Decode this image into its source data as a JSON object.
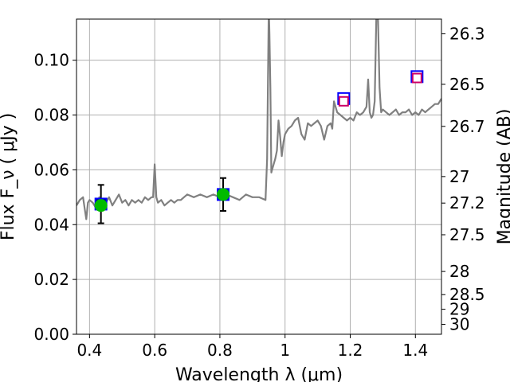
{
  "chart_data": {
    "type": "scatter",
    "xlabel": "Wavelength  λ (μm)",
    "ylabel": "Flux  F_ν  ( μJy )",
    "ylabel_right": "Magnitude (AB)",
    "xlim": [
      0.36,
      1.48
    ],
    "ylim": [
      0.0,
      0.115
    ],
    "grid": true,
    "x_ticks": [
      {
        "value": 0.4,
        "label": "0.4"
      },
      {
        "value": 0.6,
        "label": "0.6"
      },
      {
        "value": 0.8,
        "label": "0.8"
      },
      {
        "value": 1.0,
        "label": "1"
      },
      {
        "value": 1.2,
        "label": "1.2"
      },
      {
        "value": 1.4,
        "label": "1.4"
      }
    ],
    "y_ticks": [
      {
        "value": 0.0,
        "label": "0.00"
      },
      {
        "value": 0.02,
        "label": "0.02"
      },
      {
        "value": 0.04,
        "label": "0.04"
      },
      {
        "value": 0.06,
        "label": "0.06"
      },
      {
        "value": 0.08,
        "label": "0.08"
      },
      {
        "value": 0.1,
        "label": "0.10"
      }
    ],
    "mag_ticks": [
      {
        "mag": 26.3,
        "label": "26.3"
      },
      {
        "mag": 26.5,
        "label": "26.5"
      },
      {
        "mag": 26.7,
        "label": "26.7"
      },
      {
        "mag": 27.0,
        "label": "27"
      },
      {
        "mag": 27.2,
        "label": "27.2"
      },
      {
        "mag": 27.5,
        "label": "27.5"
      },
      {
        "mag": 28.0,
        "label": "28"
      },
      {
        "mag": 28.5,
        "label": "28.5"
      },
      {
        "mag": 29.0,
        "label": "29"
      },
      {
        "mag": 30.0,
        "label": "30"
      }
    ],
    "series": [
      {
        "kind": "line",
        "color": "#808080",
        "x": [
          0.36,
          0.37,
          0.38,
          0.385,
          0.39,
          0.395,
          0.4,
          0.41,
          0.42,
          0.43,
          0.435,
          0.44,
          0.45,
          0.46,
          0.47,
          0.48,
          0.49,
          0.5,
          0.51,
          0.52,
          0.53,
          0.54,
          0.55,
          0.56,
          0.57,
          0.58,
          0.59,
          0.595,
          0.6,
          0.605,
          0.61,
          0.62,
          0.63,
          0.64,
          0.65,
          0.66,
          0.67,
          0.68,
          0.69,
          0.7,
          0.72,
          0.74,
          0.76,
          0.78,
          0.8,
          0.82,
          0.84,
          0.86,
          0.88,
          0.9,
          0.92,
          0.94,
          0.945,
          0.95,
          0.952,
          0.955,
          0.958,
          0.96,
          0.965,
          0.97,
          0.975,
          0.98,
          0.985,
          0.99,
          0.995,
          1.0,
          1.01,
          1.02,
          1.03,
          1.04,
          1.05,
          1.06,
          1.07,
          1.08,
          1.09,
          1.1,
          1.11,
          1.12,
          1.13,
          1.14,
          1.145,
          1.15,
          1.16,
          1.17,
          1.18,
          1.19,
          1.2,
          1.21,
          1.22,
          1.23,
          1.24,
          1.25,
          1.255,
          1.26,
          1.265,
          1.27,
          1.275,
          1.28,
          1.285,
          1.29,
          1.295,
          1.3,
          1.31,
          1.32,
          1.33,
          1.34,
          1.35,
          1.36,
          1.37,
          1.38,
          1.39,
          1.4,
          1.41,
          1.42,
          1.43,
          1.44,
          1.45,
          1.46,
          1.47,
          1.48
        ],
        "y": [
          0.047,
          0.049,
          0.05,
          0.046,
          0.042,
          0.048,
          0.049,
          0.048,
          0.046,
          0.05,
          0.047,
          0.049,
          0.048,
          0.05,
          0.047,
          0.049,
          0.051,
          0.048,
          0.049,
          0.047,
          0.049,
          0.048,
          0.049,
          0.048,
          0.05,
          0.049,
          0.05,
          0.05,
          0.062,
          0.05,
          0.048,
          0.049,
          0.047,
          0.048,
          0.049,
          0.048,
          0.049,
          0.049,
          0.05,
          0.051,
          0.05,
          0.051,
          0.05,
          0.051,
          0.05,
          0.051,
          0.05,
          0.049,
          0.051,
          0.05,
          0.05,
          0.049,
          0.064,
          0.12,
          0.11,
          0.09,
          0.059,
          0.06,
          0.062,
          0.064,
          0.067,
          0.078,
          0.072,
          0.065,
          0.07,
          0.073,
          0.075,
          0.076,
          0.078,
          0.079,
          0.073,
          0.071,
          0.077,
          0.076,
          0.077,
          0.078,
          0.076,
          0.071,
          0.076,
          0.077,
          0.075,
          0.085,
          0.081,
          0.08,
          0.079,
          0.078,
          0.079,
          0.078,
          0.081,
          0.08,
          0.081,
          0.083,
          0.093,
          0.081,
          0.079,
          0.08,
          0.085,
          0.115,
          0.116,
          0.09,
          0.081,
          0.082,
          0.081,
          0.08,
          0.081,
          0.082,
          0.08,
          0.081,
          0.081,
          0.082,
          0.08,
          0.081,
          0.08,
          0.082,
          0.081,
          0.082,
          0.083,
          0.084,
          0.084,
          0.086
        ]
      },
      {
        "kind": "photometry",
        "points": [
          {
            "x": 0.435,
            "y": 0.0475,
            "err": 0.007,
            "fill": "#000080",
            "edge": "#0000ff",
            "marker": "square"
          },
          {
            "x": 0.81,
            "y": 0.051,
            "err": 0.006,
            "fill": "#000080",
            "edge": "#0000ff",
            "marker": "square"
          },
          {
            "x": 1.18,
            "y": 0.086,
            "err": 0,
            "fill": "#ffffff",
            "edge": "#0000ff",
            "marker": "square"
          },
          {
            "x": 1.405,
            "y": 0.094,
            "err": 0,
            "fill": "#ffffff",
            "edge": "#0000ff",
            "marker": "square"
          }
        ]
      },
      {
        "kind": "model",
        "points": [
          {
            "x": 1.18,
            "y": 0.085,
            "fill": "#ffffff",
            "edge": "#cc0066",
            "marker": "square"
          },
          {
            "x": 1.405,
            "y": 0.0935,
            "fill": "#ffffff",
            "edge": "#cc0066",
            "marker": "square"
          }
        ]
      },
      {
        "kind": "synthetic",
        "points": [
          {
            "x": 0.435,
            "y": 0.047,
            "color": "#00bb00",
            "marker": "circle"
          },
          {
            "x": 0.81,
            "y": 0.051,
            "color": "#00bb00",
            "marker": "circle"
          }
        ]
      }
    ]
  }
}
